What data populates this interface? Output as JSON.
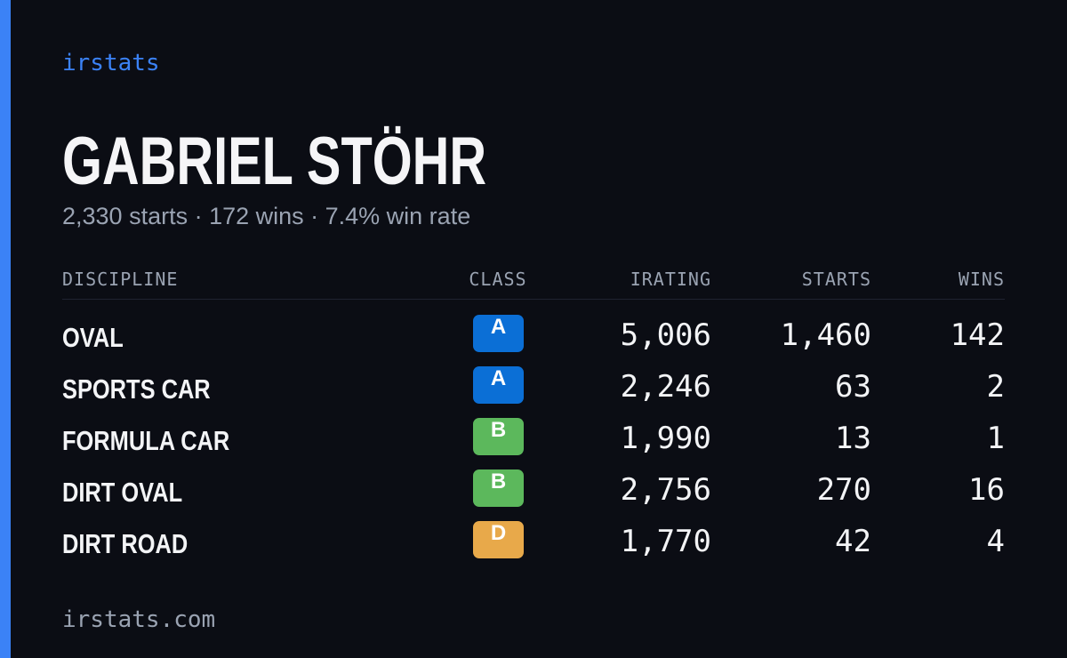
{
  "header": {
    "brand": "irstats",
    "title": "GABRIEL STÖHR",
    "subtitle": "2,330 starts · 172 wins · 7.4% win rate"
  },
  "table": {
    "columns": [
      "DISCIPLINE",
      "CLASS",
      "IRATING",
      "STARTS",
      "WINS"
    ],
    "rows": [
      [
        "OVAL",
        "A",
        "5,006",
        "1,460",
        "142"
      ],
      [
        "SPORTS CAR",
        "A",
        "2,246",
        "63",
        "2"
      ],
      [
        "FORMULA CAR",
        "B",
        "1,990",
        "13",
        "1"
      ],
      [
        "DIRT OVAL",
        "B",
        "2,756",
        "270",
        "16"
      ],
      [
        "DIRT ROAD",
        "D",
        "1,770",
        "42",
        "4"
      ]
    ],
    "class_colors": [
      "#0b6fd6",
      "#0b6fd6",
      "#5cb85c",
      "#5cb85c",
      "#e8a94a"
    ]
  },
  "footer": {
    "url": "irstats.com"
  }
}
